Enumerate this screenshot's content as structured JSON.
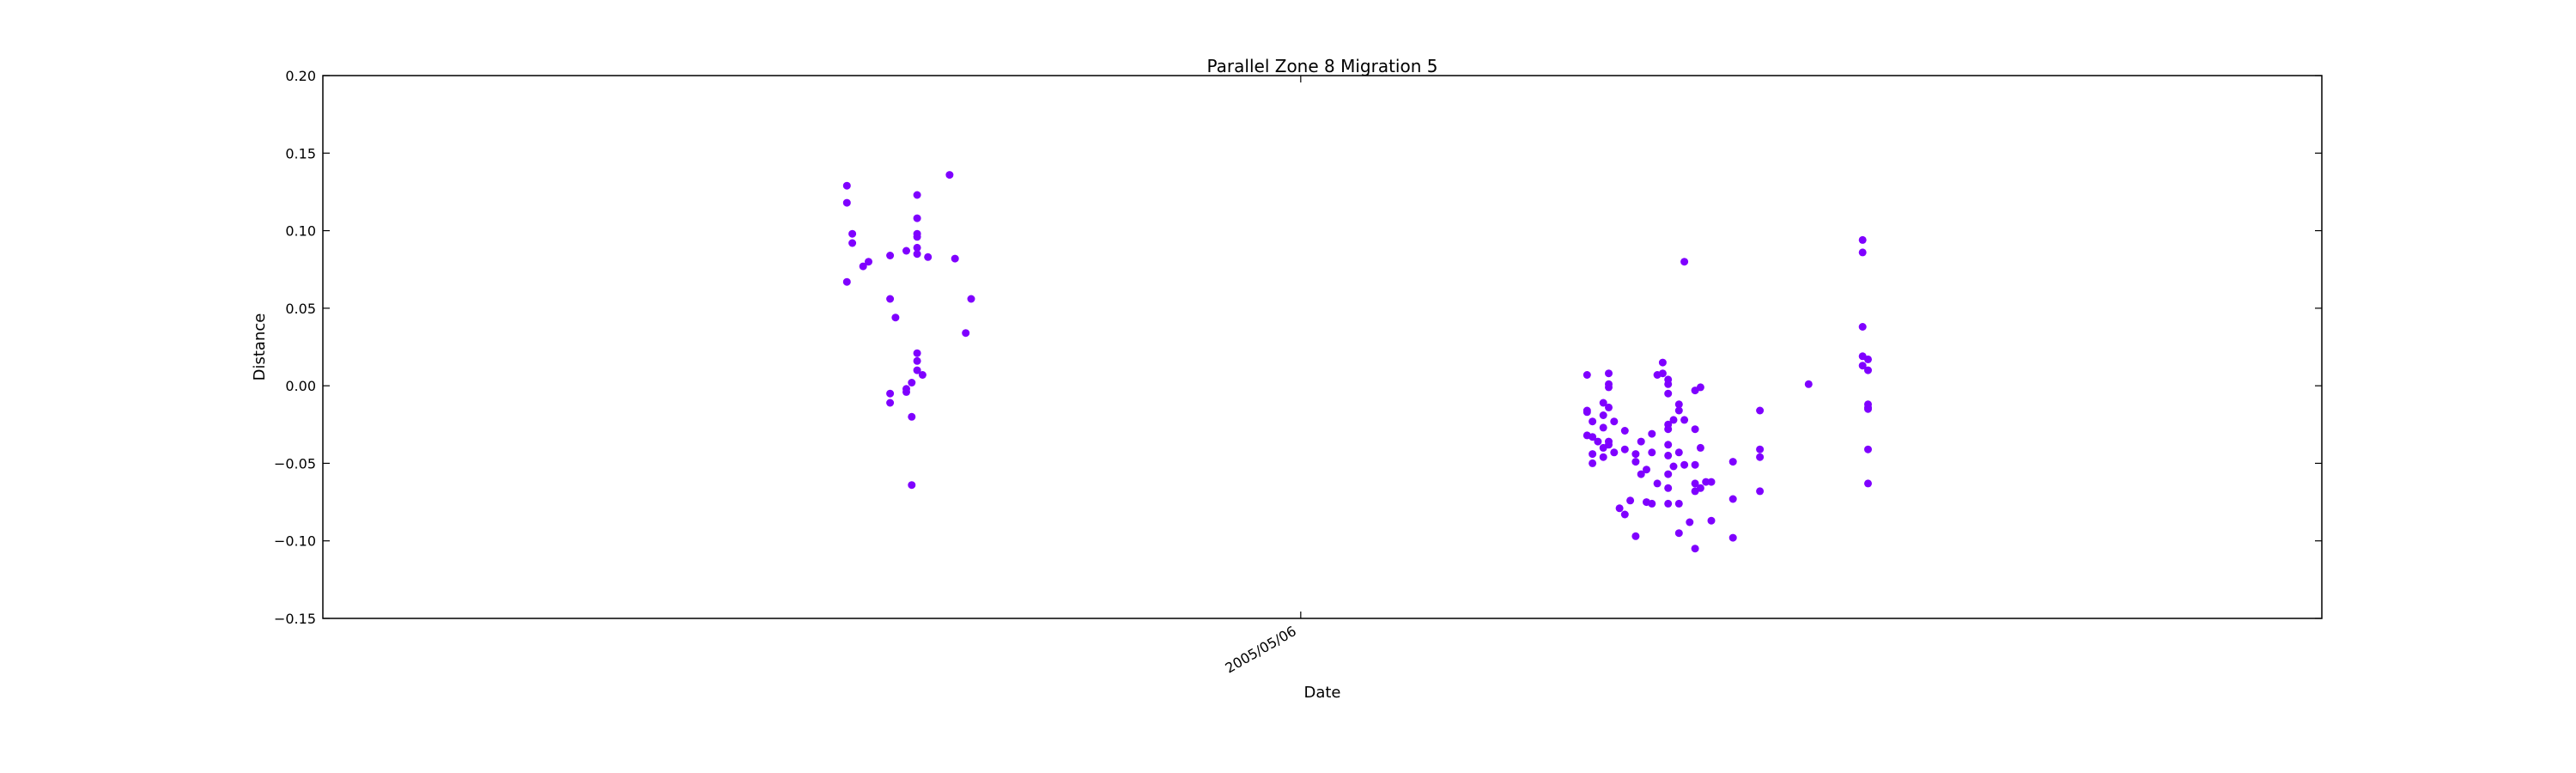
{
  "chart_data": {
    "type": "scatter",
    "title": "Parallel Zone 8 Migration 5",
    "xlabel": "Date",
    "ylabel": "Distance",
    "ylim": [
      -0.15,
      0.2
    ],
    "yticks": [
      -0.15,
      -0.1,
      -0.05,
      0.0,
      0.05,
      0.1,
      0.15,
      0.2
    ],
    "ytick_labels": [
      "−0.15",
      "−0.10",
      "−0.05",
      "0.00",
      "0.05",
      "0.10",
      "0.15",
      "0.20"
    ],
    "xlim": [
      "2004-11-06",
      "2005-11-11"
    ],
    "xticks": [
      {
        "value": "2005-05-06",
        "label": "2005/05/06"
      }
    ],
    "grid": false,
    "marker_color": "#7f00ff",
    "points": [
      {
        "x": "2005-02-11",
        "y": 0.129
      },
      {
        "x": "2005-02-11",
        "y": 0.118
      },
      {
        "x": "2005-02-12",
        "y": 0.098
      },
      {
        "x": "2005-02-12",
        "y": 0.092
      },
      {
        "x": "2005-02-11",
        "y": 0.067
      },
      {
        "x": "2005-02-14",
        "y": 0.077
      },
      {
        "x": "2005-02-15",
        "y": 0.08
      },
      {
        "x": "2005-02-19",
        "y": 0.084
      },
      {
        "x": "2005-02-19",
        "y": 0.056
      },
      {
        "x": "2005-02-20",
        "y": 0.044
      },
      {
        "x": "2005-02-19",
        "y": -0.005
      },
      {
        "x": "2005-02-19",
        "y": -0.011
      },
      {
        "x": "2005-02-22",
        "y": 0.087
      },
      {
        "x": "2005-02-22",
        "y": -0.002
      },
      {
        "x": "2005-02-22",
        "y": -0.004
      },
      {
        "x": "2005-02-23",
        "y": 0.002
      },
      {
        "x": "2005-02-24",
        "y": 0.021
      },
      {
        "x": "2005-02-24",
        "y": 0.016
      },
      {
        "x": "2005-02-24",
        "y": 0.01
      },
      {
        "x": "2005-02-25",
        "y": 0.007
      },
      {
        "x": "2005-02-23",
        "y": -0.02
      },
      {
        "x": "2005-02-23",
        "y": -0.064
      },
      {
        "x": "2005-02-24",
        "y": 0.123
      },
      {
        "x": "2005-02-24",
        "y": 0.108
      },
      {
        "x": "2005-02-24",
        "y": 0.098
      },
      {
        "x": "2005-02-24",
        "y": 0.096
      },
      {
        "x": "2005-02-24",
        "y": 0.089
      },
      {
        "x": "2005-02-24",
        "y": 0.085
      },
      {
        "x": "2005-02-26",
        "y": 0.083
      },
      {
        "x": "2005-03-02",
        "y": 0.136
      },
      {
        "x": "2005-03-03",
        "y": 0.082
      },
      {
        "x": "2005-03-05",
        "y": 0.034
      },
      {
        "x": "2005-03-06",
        "y": 0.056
      },
      {
        "x": "2005-06-28",
        "y": 0.007
      },
      {
        "x": "2005-06-28",
        "y": -0.016
      },
      {
        "x": "2005-06-28",
        "y": -0.017
      },
      {
        "x": "2005-06-29",
        "y": -0.023
      },
      {
        "x": "2005-06-29",
        "y": -0.033
      },
      {
        "x": "2005-06-28",
        "y": -0.032
      },
      {
        "x": "2005-06-29",
        "y": -0.044
      },
      {
        "x": "2005-06-29",
        "y": -0.05
      },
      {
        "x": "2005-06-30",
        "y": -0.036
      },
      {
        "x": "2005-07-01",
        "y": -0.04
      },
      {
        "x": "2005-07-01",
        "y": -0.046
      },
      {
        "x": "2005-07-01",
        "y": -0.027
      },
      {
        "x": "2005-07-01",
        "y": -0.019
      },
      {
        "x": "2005-07-01",
        "y": -0.011
      },
      {
        "x": "2005-07-02",
        "y": -0.001
      },
      {
        "x": "2005-07-02",
        "y": 0.001
      },
      {
        "x": "2005-07-02",
        "y": 0.008
      },
      {
        "x": "2005-07-02",
        "y": -0.014
      },
      {
        "x": "2005-07-02",
        "y": -0.036
      },
      {
        "x": "2005-07-02",
        "y": -0.038
      },
      {
        "x": "2005-07-03",
        "y": -0.043
      },
      {
        "x": "2005-07-03",
        "y": -0.023
      },
      {
        "x": "2005-07-05",
        "y": -0.029
      },
      {
        "x": "2005-07-05",
        "y": -0.041
      },
      {
        "x": "2005-07-04",
        "y": -0.079
      },
      {
        "x": "2005-07-05",
        "y": -0.083
      },
      {
        "x": "2005-07-06",
        "y": -0.074
      },
      {
        "x": "2005-07-07",
        "y": -0.097
      },
      {
        "x": "2005-07-07",
        "y": -0.044
      },
      {
        "x": "2005-07-07",
        "y": -0.049
      },
      {
        "x": "2005-07-08",
        "y": -0.036
      },
      {
        "x": "2005-07-08",
        "y": -0.057
      },
      {
        "x": "2005-07-09",
        "y": -0.054
      },
      {
        "x": "2005-07-09",
        "y": -0.075
      },
      {
        "x": "2005-07-10",
        "y": -0.076
      },
      {
        "x": "2005-07-10",
        "y": -0.031
      },
      {
        "x": "2005-07-10",
        "y": -0.043
      },
      {
        "x": "2005-07-11",
        "y": 0.007
      },
      {
        "x": "2005-07-11",
        "y": -0.063
      },
      {
        "x": "2005-07-12",
        "y": 0.015
      },
      {
        "x": "2005-07-12",
        "y": 0.008
      },
      {
        "x": "2005-07-13",
        "y": 0.004
      },
      {
        "x": "2005-07-13",
        "y": 0.001
      },
      {
        "x": "2005-07-13",
        "y": -0.005
      },
      {
        "x": "2005-07-13",
        "y": -0.025
      },
      {
        "x": "2005-07-13",
        "y": -0.028
      },
      {
        "x": "2005-07-13",
        "y": -0.038
      },
      {
        "x": "2005-07-13",
        "y": -0.045
      },
      {
        "x": "2005-07-13",
        "y": -0.057
      },
      {
        "x": "2005-07-13",
        "y": -0.066
      },
      {
        "x": "2005-07-13",
        "y": -0.076
      },
      {
        "x": "2005-07-14",
        "y": -0.022
      },
      {
        "x": "2005-07-14",
        "y": -0.052
      },
      {
        "x": "2005-07-15",
        "y": -0.012
      },
      {
        "x": "2005-07-15",
        "y": -0.016
      },
      {
        "x": "2005-07-15",
        "y": -0.043
      },
      {
        "x": "2005-07-15",
        "y": -0.076
      },
      {
        "x": "2005-07-15",
        "y": -0.095
      },
      {
        "x": "2005-07-16",
        "y": 0.08
      },
      {
        "x": "2005-07-16",
        "y": -0.051
      },
      {
        "x": "2005-07-16",
        "y": -0.022
      },
      {
        "x": "2005-07-17",
        "y": -0.088
      },
      {
        "x": "2005-07-18",
        "y": -0.105
      },
      {
        "x": "2005-07-18",
        "y": -0.028
      },
      {
        "x": "2005-07-18",
        "y": -0.051
      },
      {
        "x": "2005-07-18",
        "y": -0.063
      },
      {
        "x": "2005-07-18",
        "y": -0.068
      },
      {
        "x": "2005-07-18",
        "y": -0.003
      },
      {
        "x": "2005-07-19",
        "y": -0.001
      },
      {
        "x": "2005-07-19",
        "y": -0.04
      },
      {
        "x": "2005-07-19",
        "y": -0.066
      },
      {
        "x": "2005-07-20",
        "y": -0.062
      },
      {
        "x": "2005-07-21",
        "y": -0.062
      },
      {
        "x": "2005-07-21",
        "y": -0.087
      },
      {
        "x": "2005-07-25",
        "y": -0.049
      },
      {
        "x": "2005-07-25",
        "y": -0.073
      },
      {
        "x": "2005-07-25",
        "y": -0.098
      },
      {
        "x": "2005-07-30",
        "y": -0.041
      },
      {
        "x": "2005-07-30",
        "y": -0.046
      },
      {
        "x": "2005-07-30",
        "y": -0.068
      },
      {
        "x": "2005-07-30",
        "y": -0.016
      },
      {
        "x": "2005-08-08",
        "y": 0.001
      },
      {
        "x": "2005-08-18",
        "y": 0.094
      },
      {
        "x": "2005-08-18",
        "y": 0.086
      },
      {
        "x": "2005-08-18",
        "y": 0.038
      },
      {
        "x": "2005-08-18",
        "y": 0.019
      },
      {
        "x": "2005-08-18",
        "y": 0.013
      },
      {
        "x": "2005-08-19",
        "y": 0.017
      },
      {
        "x": "2005-08-19",
        "y": 0.01
      },
      {
        "x": "2005-08-19",
        "y": -0.012
      },
      {
        "x": "2005-08-19",
        "y": -0.015
      },
      {
        "x": "2005-08-19",
        "y": -0.014
      },
      {
        "x": "2005-08-19",
        "y": -0.041
      },
      {
        "x": "2005-08-19",
        "y": -0.063
      }
    ]
  }
}
